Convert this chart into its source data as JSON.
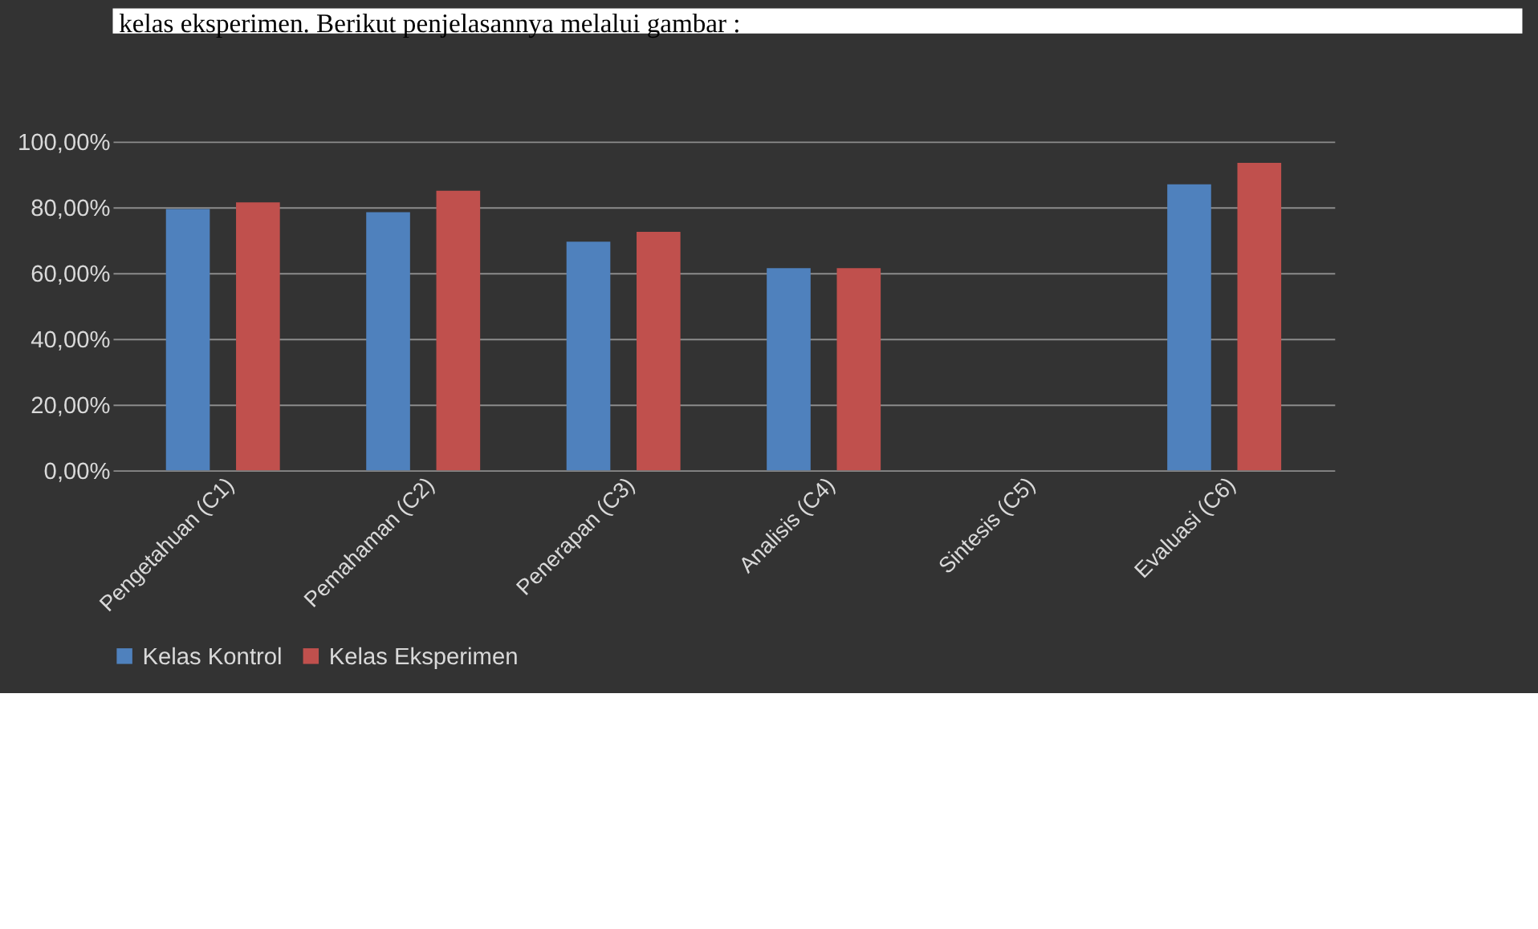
{
  "chart_data": {
    "type": "bar",
    "annotations": [
      "kelas eksperimen. Berikut penjelasannya melalui gambar :"
    ],
    "categories": [
      "Pengetahuan (C1)",
      "Pemahaman (C2)",
      "Penerapan (C3)",
      "Analisis (C4)",
      "Sintesis (C5)",
      "Evaluasi (C6)"
    ],
    "series": [
      {
        "name": "Kelas Kontrol",
        "color": "#4f81bd",
        "values": [
          79.5,
          78.5,
          69.5,
          61.5,
          0,
          87
        ]
      },
      {
        "name": "Kelas Eksperimen",
        "color": "#c0504d",
        "values": [
          81.5,
          85,
          72.5,
          61.5,
          0,
          93.5
        ]
      }
    ],
    "ylim": [
      0,
      100
    ],
    "yticks": [
      {
        "value": 0,
        "label": "0,00%"
      },
      {
        "value": 20,
        "label": "20,00%"
      },
      {
        "value": 40,
        "label": "40,00%"
      },
      {
        "value": 60,
        "label": "60,00%"
      },
      {
        "value": 80,
        "label": "80,00%"
      },
      {
        "value": 100,
        "label": "100,00%"
      }
    ],
    "grid": "y",
    "legend": "bottom"
  }
}
